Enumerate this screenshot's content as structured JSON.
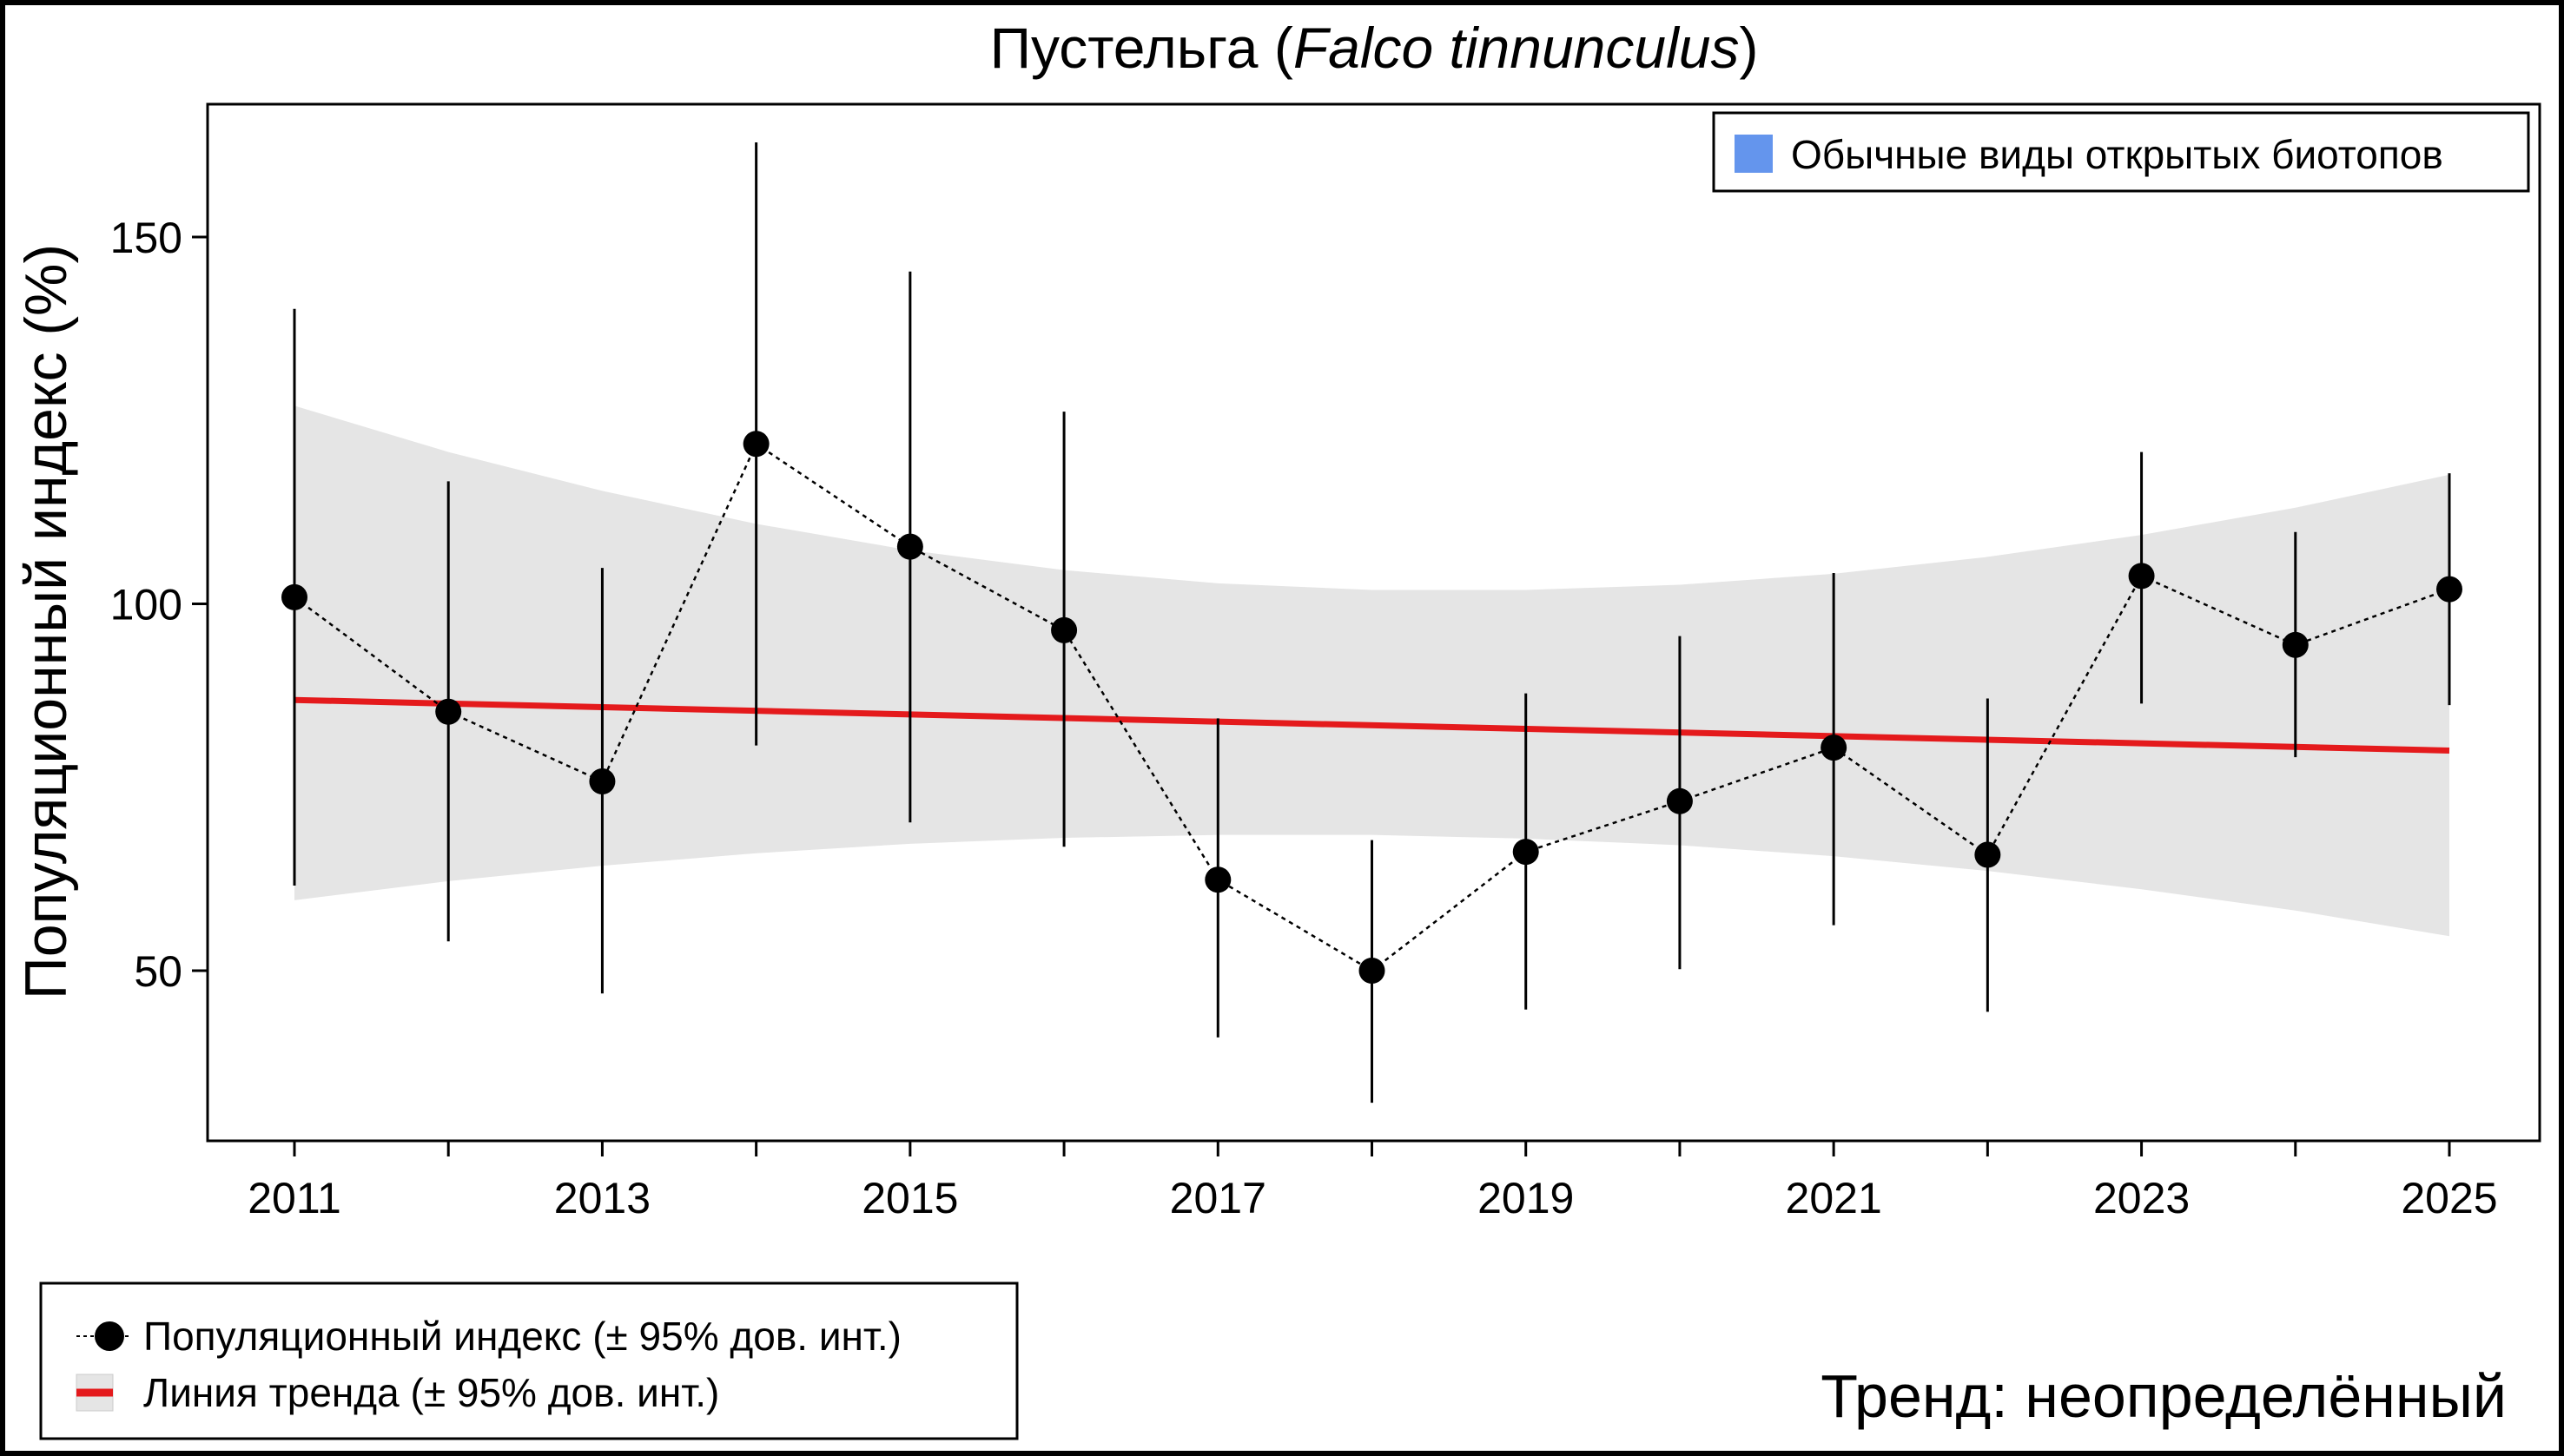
{
  "chart_data": {
    "type": "line",
    "title_main": "Пустельга (",
    "title_latin": "Falco tinnunculus",
    "title_close": ")",
    "ylabel": "Популяционный индекс (%)",
    "xlabel": "",
    "ylim": [
      27,
      167
    ],
    "yticks": [
      50,
      100,
      150
    ],
    "xticks": [
      2011,
      2013,
      2015,
      2017,
      2019,
      2021,
      2023,
      2025
    ],
    "grid": false,
    "x": [
      2011,
      2012,
      2013,
      2014,
      2015,
      2016,
      2017,
      2018,
      2019,
      2020,
      2021,
      2022,
      2023,
      2024,
      2025
    ],
    "series": [
      {
        "name": "Популяционный индекс (± 95% дов. инт.)",
        "values": [
          100.9,
          85.3,
          75.8,
          121.8,
          107.8,
          96.4,
          62.4,
          50.0,
          66.2,
          73.1,
          80.4,
          65.8,
          103.8,
          94.4,
          102.0
        ],
        "ci_upper": [
          140.2,
          116.7,
          104.9,
          162.9,
          145.3,
          126.2,
          84.4,
          67.8,
          87.8,
          95.6,
          104.2,
          87.1,
          120.7,
          109.8,
          117.8
        ],
        "ci_lower": [
          61.6,
          54.0,
          46.9,
          80.7,
          70.2,
          66.9,
          40.9,
          32.0,
          44.7,
          50.2,
          56.2,
          44.4,
          86.4,
          79.1,
          86.2
        ],
        "color": "#000000"
      },
      {
        "name": "Линия тренда (± 95% дов. инт.)",
        "trend_start": 86.9,
        "trend_end": 80.0,
        "band_upper": [
          127.0,
          120.7,
          115.4,
          110.9,
          107.3,
          104.6,
          102.8,
          101.9,
          101.9,
          102.6,
          104.1,
          106.4,
          109.4,
          113.1,
          117.6
        ],
        "band_lower": [
          59.6,
          62.2,
          64.3,
          66.0,
          67.3,
          68.1,
          68.5,
          68.5,
          68.0,
          67.1,
          65.6,
          63.6,
          61.1,
          58.2,
          54.7
        ],
        "color": "#e41a1c",
        "band_color": "#e5e5e5"
      }
    ],
    "group_legend": {
      "label": "Обычные виды открытых биотопов",
      "color": "#6495ed",
      "placement": "top-right"
    },
    "legend_placement": "bottom-left",
    "annotation": "Тренд: неопределённый"
  }
}
